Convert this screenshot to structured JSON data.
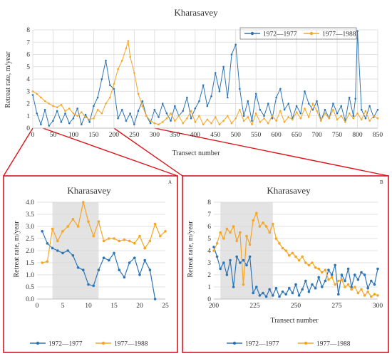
{
  "figure": {
    "main_label": "",
    "inset_a_label": "A",
    "inset_b_label": "B"
  },
  "chart_data": [
    {
      "type": "line",
      "title": "Kharasavey",
      "xlabel": "Transect number",
      "ylabel": "Retreat rate, m/year",
      "xlim": [
        0,
        850
      ],
      "ylim": [
        0,
        8
      ],
      "xticks": [
        0,
        50,
        100,
        150,
        200,
        250,
        300,
        350,
        400,
        450,
        500,
        550,
        600,
        650,
        700,
        750,
        800,
        850
      ],
      "yticks": [
        0,
        1,
        2,
        3,
        4,
        5,
        6,
        7,
        8
      ],
      "legend": "top-right",
      "grid": true,
      "series": [
        {
          "name": "1972—1977",
          "color": "#2e75b6",
          "x": [
            0,
            10,
            20,
            30,
            40,
            50,
            60,
            70,
            80,
            90,
            100,
            110,
            120,
            130,
            140,
            150,
            160,
            170,
            180,
            190,
            200,
            210,
            220,
            230,
            240,
            250,
            260,
            270,
            280,
            290,
            300,
            310,
            320,
            330,
            340,
            350,
            360,
            370,
            380,
            390,
            400,
            410,
            420,
            430,
            440,
            450,
            460,
            470,
            480,
            490,
            500,
            510,
            520,
            530,
            540,
            550,
            560,
            570,
            580,
            590,
            600,
            610,
            620,
            630,
            640,
            650,
            660,
            670,
            680,
            690,
            700,
            710,
            720,
            730,
            740,
            750,
            760,
            770,
            780,
            790,
            795,
            800,
            810,
            820,
            830,
            840,
            850
          ],
          "y": [
            2.7,
            1.2,
            0.3,
            1.5,
            0.2,
            0.6,
            1.4,
            0.5,
            1.2,
            0.4,
            0.8,
            1.6,
            0.3,
            1.1,
            0.5,
            1.8,
            2.5,
            4.0,
            5.5,
            3.5,
            3.2,
            0.8,
            1.5,
            0.6,
            1.2,
            0.3,
            1.4,
            2.2,
            1.0,
            0.4,
            1.5,
            0.9,
            2.0,
            1.2,
            0.6,
            1.8,
            1.0,
            1.4,
            2.5,
            0.8,
            1.6,
            2.2,
            3.5,
            1.8,
            2.6,
            4.5,
            3.0,
            5.0,
            2.5,
            6.0,
            6.8,
            3.2,
            1.0,
            2.2,
            0.6,
            2.8,
            1.5,
            1.0,
            2.0,
            0.8,
            2.5,
            3.2,
            1.5,
            2.0,
            0.8,
            1.8,
            1.2,
            3.0,
            2.0,
            1.5,
            2.2,
            0.6,
            1.5,
            0.8,
            2.0,
            1.2,
            1.8,
            0.6,
            2.5,
            1.0,
            2.4,
            7.9,
            1.5,
            0.8,
            1.8,
            0.9,
            1.5
          ]
        },
        {
          "name": "1977—1988",
          "color": "#f5a623",
          "x": [
            0,
            10,
            20,
            30,
            40,
            50,
            60,
            70,
            80,
            90,
            100,
            110,
            120,
            130,
            140,
            150,
            160,
            170,
            180,
            190,
            200,
            210,
            220,
            230,
            235,
            240,
            250,
            260,
            270,
            280,
            290,
            300,
            310,
            320,
            330,
            340,
            350,
            360,
            370,
            380,
            390,
            400,
            410,
            420,
            430,
            440,
            450,
            460,
            470,
            480,
            490,
            500,
            510,
            520,
            530,
            540,
            550,
            560,
            570,
            580,
            590,
            600,
            610,
            620,
            630,
            640,
            650,
            660,
            670,
            680,
            690,
            700,
            710,
            720,
            730,
            740,
            750,
            760,
            770,
            780,
            790,
            800,
            810,
            820,
            830,
            840,
            850
          ],
          "y": [
            3.0,
            2.8,
            2.5,
            2.2,
            2.0,
            1.8,
            1.7,
            1.9,
            1.4,
            1.6,
            1.2,
            1.0,
            1.3,
            0.9,
            0.7,
            0.8,
            1.5,
            1.2,
            2.0,
            2.5,
            3.6,
            4.8,
            5.5,
            6.5,
            7.1,
            5.8,
            4.5,
            2.8,
            1.8,
            1.0,
            0.6,
            0.4,
            0.3,
            0.5,
            0.8,
            1.2,
            0.6,
            1.0,
            0.4,
            0.8,
            1.4,
            0.5,
            1.0,
            0.3,
            0.7,
            0.4,
            0.9,
            0.3,
            0.6,
            1.0,
            0.4,
            0.8,
            1.5,
            0.6,
            0.9,
            0.3,
            1.2,
            0.5,
            0.8,
            0.4,
            1.0,
            0.6,
            1.4,
            0.5,
            0.9,
            0.7,
            1.3,
            0.8,
            1.6,
            0.9,
            2.0,
            1.4,
            0.6,
            1.2,
            0.8,
            1.5,
            0.7,
            1.0,
            0.5,
            1.2,
            0.8,
            1.2,
            0.7,
            1.4,
            0.6,
            1.0,
            0.8
          ]
        }
      ]
    },
    {
      "type": "line",
      "panel": "A",
      "title": "Kharasavey",
      "xlabel": "",
      "ylabel": "Retreat rate, m/year",
      "xlim": [
        0,
        25
      ],
      "ylim": [
        0,
        4.0
      ],
      "xticks": [
        0,
        5,
        10,
        15,
        20,
        25
      ],
      "yticks": [
        "0.0",
        "0.5",
        "1.0",
        "1.5",
        "2.0",
        "2.5",
        "3.0",
        "3.5",
        "4.0"
      ],
      "shaded_region": [
        3,
        12
      ],
      "legend": "bottom",
      "grid": true,
      "series": [
        {
          "name": "1972—1977",
          "color": "#2e75b6",
          "x": [
            1,
            2,
            3,
            4,
            5,
            6,
            7,
            8,
            9,
            10,
            11,
            12,
            13,
            14,
            15,
            16,
            17,
            18,
            19,
            20,
            21,
            22,
            23
          ],
          "y": [
            2.8,
            2.3,
            2.1,
            2.0,
            1.9,
            2.0,
            1.8,
            1.3,
            1.2,
            0.6,
            0.55,
            1.2,
            1.7,
            1.6,
            1.9,
            1.2,
            0.9,
            1.5,
            1.7,
            1.0,
            1.6,
            1.2,
            0.0
          ]
        },
        {
          "name": "1977—1988",
          "color": "#f5a623",
          "x": [
            1,
            2,
            3,
            4,
            5,
            6,
            7,
            8,
            9,
            10,
            11,
            12,
            13,
            14,
            15,
            16,
            17,
            18,
            19,
            20,
            21,
            22,
            23,
            24,
            25
          ],
          "y": [
            1.5,
            1.55,
            2.9,
            2.4,
            2.8,
            3.0,
            3.3,
            3.0,
            4.0,
            3.2,
            2.6,
            3.2,
            2.4,
            2.5,
            2.5,
            2.4,
            2.45,
            2.4,
            2.3,
            2.6,
            2.1,
            2.4,
            3.1,
            2.6,
            2.8
          ]
        }
      ]
    },
    {
      "type": "line",
      "panel": "B",
      "title": "Kharasavey",
      "xlabel": "Transect number",
      "ylabel": "Retreat rate, m/year",
      "xlim": [
        200,
        300
      ],
      "ylim": [
        0,
        8
      ],
      "xticks": [
        200,
        225,
        250,
        275,
        300
      ],
      "yticks": [
        0,
        1,
        2,
        3,
        4,
        5,
        6,
        7,
        8
      ],
      "shaded_region": [
        204,
        236
      ],
      "legend": "bottom",
      "grid": true,
      "series": [
        {
          "name": "1972—1977",
          "color": "#2e75b6",
          "x": [
            200,
            202,
            204,
            206,
            208,
            210,
            212,
            214,
            216,
            218,
            220,
            222,
            224,
            226,
            228,
            230,
            232,
            234,
            236,
            238,
            240,
            242,
            244,
            246,
            248,
            250,
            252,
            254,
            256,
            258,
            260,
            262,
            264,
            266,
            268,
            270,
            272,
            274,
            276,
            278,
            280,
            282,
            284,
            286,
            288,
            290,
            292,
            294,
            296,
            298,
            300
          ],
          "y": [
            4.3,
            3.5,
            2.5,
            3.0,
            2.0,
            3.2,
            1.0,
            3.5,
            3.0,
            3.2,
            2.8,
            3.5,
            0.5,
            1.0,
            0.3,
            0.5,
            0.2,
            0.8,
            0.3,
            0.9,
            0.2,
            0.6,
            0.4,
            0.9,
            0.5,
            1.2,
            0.3,
            0.8,
            1.5,
            0.6,
            1.2,
            0.9,
            1.8,
            1.0,
            1.5,
            2.4,
            2.0,
            2.8,
            0.4,
            2.0,
            1.5,
            2.5,
            1.0,
            2.0,
            1.6,
            2.2,
            2.0,
            0.9,
            1.5,
            1.2,
            2.5
          ]
        },
        {
          "name": "1977—1988",
          "color": "#f5a623",
          "x": [
            200,
            202,
            204,
            206,
            208,
            210,
            212,
            214,
            216,
            218,
            220,
            222,
            224,
            226,
            228,
            230,
            232,
            234,
            236,
            238,
            240,
            242,
            244,
            246,
            248,
            250,
            252,
            254,
            256,
            258,
            260,
            262,
            264,
            266,
            268,
            270,
            272,
            274,
            276,
            278,
            280,
            282,
            284,
            286,
            288,
            290,
            292,
            294,
            296,
            298,
            300
          ],
          "y": [
            4.0,
            4.6,
            5.5,
            5.0,
            5.8,
            5.5,
            6.0,
            4.8,
            5.5,
            1.2,
            5.2,
            4.5,
            6.5,
            7.1,
            6.0,
            6.3,
            6.0,
            5.5,
            6.2,
            5.0,
            4.6,
            4.2,
            4.0,
            3.6,
            3.8,
            3.5,
            3.2,
            3.5,
            3.0,
            2.8,
            3.0,
            2.6,
            2.5,
            2.2,
            2.4,
            1.6,
            1.8,
            1.2,
            1.5,
            1.6,
            1.0,
            1.2,
            0.8,
            1.0,
            0.5,
            0.8,
            0.3,
            0.6,
            0.2,
            0.4,
            0.3
          ]
        }
      ]
    }
  ]
}
